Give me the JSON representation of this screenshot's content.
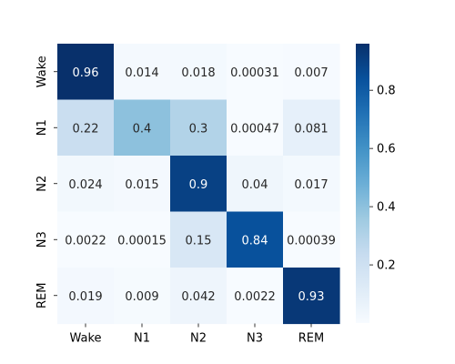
{
  "chart_data": {
    "type": "heatmap",
    "title": "",
    "xlabel": "",
    "ylabel": "",
    "row_labels": [
      "Wake",
      "N1",
      "N2",
      "N3",
      "REM"
    ],
    "col_labels": [
      "Wake",
      "N1",
      "N2",
      "N3",
      "REM"
    ],
    "matrix": [
      [
        0.96,
        0.014,
        0.018,
        0.00031,
        0.007
      ],
      [
        0.22,
        0.4,
        0.3,
        0.00047,
        0.081
      ],
      [
        0.024,
        0.015,
        0.9,
        0.04,
        0.017
      ],
      [
        0.0022,
        0.00015,
        0.15,
        0.84,
        0.00039
      ],
      [
        0.019,
        0.009,
        0.042,
        0.0022,
        0.93
      ]
    ],
    "value_labels": [
      [
        "0.96",
        "0.014",
        "0.018",
        "0.00031",
        "0.007"
      ],
      [
        "0.22",
        "0.4",
        "0.3",
        "0.00047",
        "0.081"
      ],
      [
        "0.024",
        "0.015",
        "0.9",
        "0.04",
        "0.017"
      ],
      [
        "0.0022",
        "0.00015",
        "0.15",
        "0.84",
        "0.00039"
      ],
      [
        "0.019",
        "0.009",
        "0.042",
        "0.0022",
        "0.93"
      ]
    ],
    "colormap": "Blues",
    "color_range": [
      0.00015,
      0.96
    ],
    "colorbar_ticks": [
      0.2,
      0.4,
      0.6,
      0.8
    ],
    "colorbar_tick_labels": [
      "0.2",
      "0.4",
      "0.6",
      "0.8"
    ],
    "grid": false,
    "legend": "colorbar-right"
  }
}
